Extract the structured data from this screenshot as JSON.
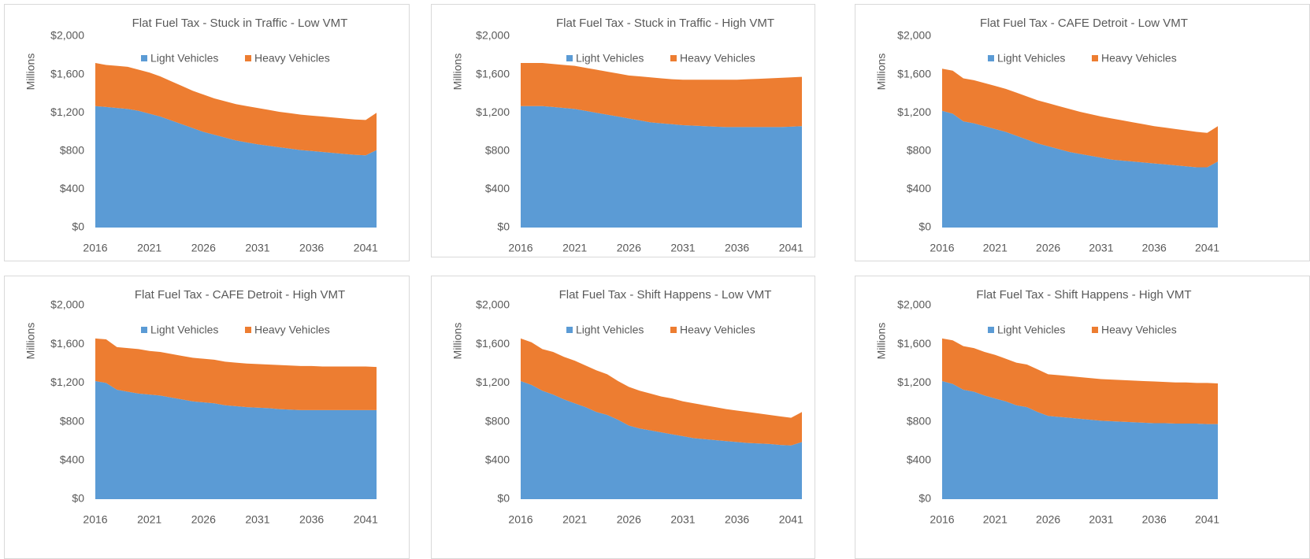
{
  "chart_data": [
    {
      "type": "stacked_area",
      "title": "Flat Fuel Tax - Stuck in Traffic - Low VMT",
      "y_label": "Millions",
      "x": [
        2016,
        2017,
        2018,
        2019,
        2020,
        2021,
        2022,
        2023,
        2024,
        2025,
        2026,
        2027,
        2028,
        2029,
        2030,
        2031,
        2032,
        2033,
        2034,
        2035,
        2036,
        2037,
        2038,
        2039,
        2040,
        2041,
        2042
      ],
      "series": [
        {
          "name": "Light Vehicles",
          "color": "#5b9bd5",
          "values": [
            1270,
            1260,
            1250,
            1240,
            1220,
            1190,
            1160,
            1120,
            1080,
            1040,
            1000,
            970,
            940,
            910,
            890,
            870,
            855,
            840,
            825,
            810,
            800,
            790,
            780,
            770,
            760,
            755,
            810
          ]
        },
        {
          "name": "Heavy Vehicles",
          "color": "#ed7d31",
          "values": [
            450,
            440,
            440,
            440,
            430,
            430,
            420,
            410,
            400,
            390,
            390,
            380,
            380,
            380,
            380,
            380,
            375,
            370,
            370,
            370,
            370,
            370,
            370,
            370,
            370,
            370,
            390
          ]
        }
      ],
      "xlim": [
        2016,
        2042
      ],
      "xticks": [
        2016,
        2021,
        2026,
        2031,
        2036,
        2041
      ],
      "ylim": [
        0,
        2000
      ],
      "yticks": [
        {
          "value": 0,
          "label": "$0"
        },
        {
          "value": 400,
          "label": "$400"
        },
        {
          "value": 800,
          "label": "$800"
        },
        {
          "value": 1200,
          "label": "$1,200"
        },
        {
          "value": 1600,
          "label": "$1,600"
        },
        {
          "value": 2000,
          "label": "$2,000"
        }
      ],
      "grid": false,
      "legend": "top"
    },
    {
      "type": "stacked_area",
      "title": "Flat Fuel Tax - Stuck in Traffic - High VMT",
      "y_label": "Millions",
      "x": [
        2016,
        2017,
        2018,
        2019,
        2020,
        2021,
        2022,
        2023,
        2024,
        2025,
        2026,
        2027,
        2028,
        2029,
        2030,
        2031,
        2032,
        2033,
        2034,
        2035,
        2036,
        2037,
        2038,
        2039,
        2040,
        2041,
        2042
      ],
      "series": [
        {
          "name": "Light Vehicles",
          "color": "#5b9bd5",
          "values": [
            1270,
            1270,
            1270,
            1260,
            1250,
            1240,
            1220,
            1200,
            1180,
            1160,
            1140,
            1120,
            1100,
            1090,
            1080,
            1070,
            1065,
            1060,
            1055,
            1050,
            1050,
            1050,
            1050,
            1050,
            1050,
            1055,
            1060
          ]
        },
        {
          "name": "Heavy Vehicles",
          "color": "#ed7d31",
          "values": [
            450,
            450,
            450,
            450,
            450,
            450,
            450,
            450,
            450,
            450,
            450,
            460,
            470,
            470,
            470,
            475,
            480,
            485,
            490,
            495,
            495,
            500,
            505,
            510,
            515,
            515,
            515
          ]
        }
      ],
      "xlim": [
        2016,
        2042
      ],
      "xticks": [
        2016,
        2021,
        2026,
        2031,
        2036,
        2041
      ],
      "ylim": [
        0,
        2000
      ],
      "yticks": [
        {
          "value": 0,
          "label": "$0"
        },
        {
          "value": 400,
          "label": "$400"
        },
        {
          "value": 800,
          "label": "$800"
        },
        {
          "value": 1200,
          "label": "$1,200"
        },
        {
          "value": 1600,
          "label": "$1,600"
        },
        {
          "value": 2000,
          "label": "$2,000"
        }
      ],
      "grid": false,
      "legend": "top"
    },
    {
      "type": "stacked_area",
      "title": "Flat Fuel Tax - CAFE Detroit - Low VMT",
      "y_label": "Millions",
      "x": [
        2016,
        2017,
        2018,
        2019,
        2020,
        2021,
        2022,
        2023,
        2024,
        2025,
        2026,
        2027,
        2028,
        2029,
        2030,
        2031,
        2032,
        2033,
        2034,
        2035,
        2036,
        2037,
        2038,
        2039,
        2040,
        2041,
        2042
      ],
      "series": [
        {
          "name": "Light Vehicles",
          "color": "#5b9bd5",
          "values": [
            1220,
            1190,
            1110,
            1090,
            1060,
            1030,
            1000,
            960,
            920,
            880,
            850,
            820,
            790,
            770,
            750,
            730,
            710,
            700,
            690,
            680,
            670,
            660,
            650,
            640,
            630,
            630,
            690
          ]
        },
        {
          "name": "Heavy Vehicles",
          "color": "#ed7d31",
          "values": [
            440,
            450,
            450,
            450,
            450,
            450,
            450,
            450,
            450,
            450,
            450,
            450,
            450,
            440,
            435,
            430,
            430,
            420,
            410,
            400,
            390,
            385,
            380,
            375,
            370,
            360,
            370
          ]
        }
      ],
      "xlim": [
        2016,
        2042
      ],
      "xticks": [
        2016,
        2021,
        2026,
        2031,
        2036,
        2041
      ],
      "ylim": [
        0,
        2000
      ],
      "yticks": [
        {
          "value": 0,
          "label": "$0"
        },
        {
          "value": 400,
          "label": "$400"
        },
        {
          "value": 800,
          "label": "$800"
        },
        {
          "value": 1200,
          "label": "$1,200"
        },
        {
          "value": 1600,
          "label": "$1,600"
        },
        {
          "value": 2000,
          "label": "$2,000"
        }
      ],
      "grid": false,
      "legend": "top"
    },
    {
      "type": "stacked_area",
      "title": "Flat Fuel Tax - CAFE Detroit - High VMT",
      "y_label": "Millions",
      "x": [
        2016,
        2017,
        2018,
        2019,
        2020,
        2021,
        2022,
        2023,
        2024,
        2025,
        2026,
        2027,
        2028,
        2029,
        2030,
        2031,
        2032,
        2033,
        2034,
        2035,
        2036,
        2037,
        2038,
        2039,
        2040,
        2041,
        2042
      ],
      "series": [
        {
          "name": "Light Vehicles",
          "color": "#5b9bd5",
          "values": [
            1220,
            1200,
            1130,
            1110,
            1090,
            1080,
            1070,
            1050,
            1030,
            1010,
            1000,
            990,
            970,
            960,
            950,
            945,
            940,
            930,
            925,
            920,
            920,
            920,
            920,
            920,
            920,
            920,
            920
          ]
        },
        {
          "name": "Heavy Vehicles",
          "color": "#ed7d31",
          "values": [
            440,
            450,
            440,
            450,
            460,
            450,
            450,
            450,
            450,
            450,
            450,
            450,
            450,
            450,
            450,
            450,
            450,
            455,
            455,
            455,
            455,
            450,
            450,
            450,
            450,
            450,
            445
          ]
        }
      ],
      "xlim": [
        2016,
        2042
      ],
      "xticks": [
        2016,
        2021,
        2026,
        2031,
        2036,
        2041
      ],
      "ylim": [
        0,
        2000
      ],
      "yticks": [
        {
          "value": 0,
          "label": "$0"
        },
        {
          "value": 400,
          "label": "$400"
        },
        {
          "value": 800,
          "label": "$800"
        },
        {
          "value": 1200,
          "label": "$1,200"
        },
        {
          "value": 1600,
          "label": "$1,600"
        },
        {
          "value": 2000,
          "label": "$2,000"
        }
      ],
      "grid": false,
      "legend": "top"
    },
    {
      "type": "stacked_area",
      "title": "Flat Fuel Tax - Shift Happens - Low VMT",
      "y_label": "Millions",
      "x": [
        2016,
        2017,
        2018,
        2019,
        2020,
        2021,
        2022,
        2023,
        2024,
        2025,
        2026,
        2027,
        2028,
        2029,
        2030,
        2031,
        2032,
        2033,
        2034,
        2035,
        2036,
        2037,
        2038,
        2039,
        2040,
        2041,
        2042
      ],
      "series": [
        {
          "name": "Light Vehicles",
          "color": "#5b9bd5",
          "values": [
            1220,
            1180,
            1120,
            1080,
            1030,
            990,
            950,
            900,
            870,
            820,
            760,
            730,
            710,
            690,
            670,
            650,
            630,
            620,
            610,
            600,
            590,
            580,
            575,
            570,
            560,
            555,
            590
          ]
        },
        {
          "name": "Heavy Vehicles",
          "color": "#ed7d31",
          "values": [
            440,
            440,
            430,
            440,
            440,
            440,
            430,
            430,
            420,
            400,
            400,
            390,
            380,
            370,
            370,
            360,
            360,
            350,
            340,
            330,
            325,
            320,
            310,
            300,
            295,
            285,
            310
          ]
        }
      ],
      "xlim": [
        2016,
        2042
      ],
      "xticks": [
        2016,
        2021,
        2026,
        2031,
        2036,
        2041
      ],
      "ylim": [
        0,
        2000
      ],
      "yticks": [
        {
          "value": 0,
          "label": "$0"
        },
        {
          "value": 400,
          "label": "$400"
        },
        {
          "value": 800,
          "label": "$800"
        },
        {
          "value": 1200,
          "label": "$1,200"
        },
        {
          "value": 1600,
          "label": "$1,600"
        },
        {
          "value": 2000,
          "label": "$2,000"
        }
      ],
      "grid": false,
      "legend": "top"
    },
    {
      "type": "stacked_area",
      "title": "Flat Fuel Tax - Shift Happens - High VMT",
      "y_label": "Millions",
      "x": [
        2016,
        2017,
        2018,
        2019,
        2020,
        2021,
        2022,
        2023,
        2024,
        2025,
        2026,
        2027,
        2028,
        2029,
        2030,
        2031,
        2032,
        2033,
        2034,
        2035,
        2036,
        2037,
        2038,
        2039,
        2040,
        2041,
        2042
      ],
      "series": [
        {
          "name": "Light Vehicles",
          "color": "#5b9bd5",
          "values": [
            1220,
            1190,
            1130,
            1110,
            1070,
            1040,
            1010,
            970,
            950,
            900,
            860,
            850,
            840,
            830,
            820,
            810,
            805,
            800,
            795,
            790,
            785,
            785,
            780,
            780,
            780,
            775,
            775
          ]
        },
        {
          "name": "Heavy Vehicles",
          "color": "#ed7d31",
          "values": [
            440,
            450,
            450,
            450,
            450,
            450,
            440,
            440,
            440,
            440,
            430,
            430,
            430,
            430,
            430,
            430,
            430,
            430,
            430,
            430,
            430,
            425,
            425,
            425,
            420,
            425,
            420
          ]
        }
      ],
      "xlim": [
        2016,
        2042
      ],
      "xticks": [
        2016,
        2021,
        2026,
        2031,
        2036,
        2041
      ],
      "ylim": [
        0,
        2000
      ],
      "yticks": [
        {
          "value": 0,
          "label": "$0"
        },
        {
          "value": 400,
          "label": "$400"
        },
        {
          "value": 800,
          "label": "$800"
        },
        {
          "value": 1200,
          "label": "$1,200"
        },
        {
          "value": 1600,
          "label": "$1,600"
        },
        {
          "value": 2000,
          "label": "$2,000"
        }
      ],
      "grid": false,
      "legend": "top"
    }
  ]
}
